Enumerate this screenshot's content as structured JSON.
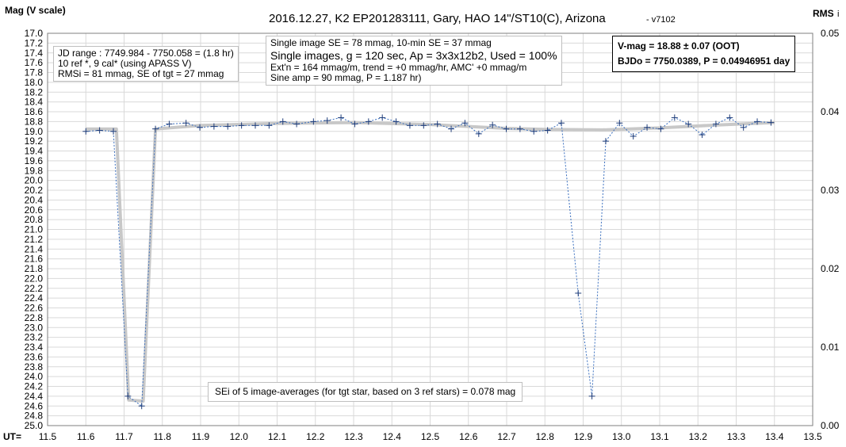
{
  "header": {
    "title": "2016.12.27,  K2 EP201283111,  Gary, HAO  14\"/ST10(C), Arizona",
    "version": "- v7102",
    "y_label": "Mag (V scale)",
    "y2_label": "RMS",
    "y2_label_sub": "i",
    "x_label": "UT="
  },
  "info_left": {
    "line1": "JD range  : 7749.984 - 7750.058  = (1.8 hr)",
    "line2": "10 ref *, 9 cal* (using APASS V)",
    "line3": "RMSi = 81 mmag, SE of tgt = 27 mmag"
  },
  "info_mid": {
    "line1": "Single image SE = 78  mmag, 10-min SE = 37 mmag",
    "line2": "Single images, g = 120 sec,  Ap = 3x3x12b2,  Used = 100%",
    "line3": "Ext'n = 164  mmag/m,  trend = +0 mmag/hr,  AMC' +0 mmag/m",
    "line4": "Sine amp = 90 mmag, P = 1.187 hr)"
  },
  "info_right": {
    "line1": "V-mag  = 18.88 ± 0.07 (OOT)",
    "line2": "BJDo = 7750.0389,  P = 0.04946951  day"
  },
  "info_bottom": {
    "line1": "SEi of 5 image-averages (for tgt star, based on 3 ref stars) = 0.078 mag"
  },
  "colors": {
    "data_points": "#1f3d7a",
    "data_line": "#3a6fbf",
    "model": "#c8c8c8",
    "grid": "#d9d9d9"
  },
  "chart_data": {
    "type": "scatter",
    "title": "2016.12.27,  K2 EP201283111,  Gary, HAO  14\"/ST10(C), Arizona",
    "xlabel": "UT=",
    "ylabel": "Mag (V scale)",
    "y2label": "RMS i",
    "xlim": [
      11.5,
      13.5
    ],
    "ylim": [
      17.0,
      25.0
    ],
    "y_inverted": true,
    "y2lim": [
      0.0,
      0.05
    ],
    "x_ticks": [
      11.5,
      11.6,
      11.7,
      11.8,
      11.9,
      12.0,
      12.1,
      12.2,
      12.3,
      12.4,
      12.5,
      12.6,
      12.7,
      12.8,
      12.9,
      13.0,
      13.1,
      13.2,
      13.3,
      13.4,
      13.5
    ],
    "y_ticks": [
      17.0,
      17.2,
      17.4,
      17.6,
      17.8,
      18.0,
      18.2,
      18.4,
      18.6,
      18.8,
      19.0,
      19.2,
      19.4,
      19.6,
      19.8,
      20.0,
      20.2,
      20.4,
      20.6,
      20.8,
      21.0,
      21.2,
      21.4,
      21.6,
      21.8,
      22.0,
      22.2,
      22.4,
      22.6,
      22.8,
      23.0,
      23.2,
      23.4,
      23.6,
      23.8,
      24.0,
      24.2,
      24.4,
      24.6,
      24.8,
      25.0
    ],
    "y2_ticks": [
      0.0,
      0.01,
      0.02,
      0.03,
      0.04,
      0.05
    ],
    "grid": true,
    "series": [
      {
        "name": "",
        "style": "markers+dashed-line",
        "points": [
          {
            "x": 11.6,
            "y": 19.0
          },
          {
            "x": 11.636,
            "y": 18.98
          },
          {
            "x": 11.672,
            "y": 19.0
          },
          {
            "x": 11.71,
            "y": 24.4
          },
          {
            "x": 11.746,
            "y": 24.6
          },
          {
            "x": 11.782,
            "y": 18.95
          },
          {
            "x": 11.818,
            "y": 18.85
          },
          {
            "x": 11.862,
            "y": 18.83
          },
          {
            "x": 11.898,
            "y": 18.92
          },
          {
            "x": 11.935,
            "y": 18.9
          },
          {
            "x": 11.971,
            "y": 18.9
          },
          {
            "x": 12.007,
            "y": 18.88
          },
          {
            "x": 12.043,
            "y": 18.88
          },
          {
            "x": 12.079,
            "y": 18.88
          },
          {
            "x": 12.115,
            "y": 18.8
          },
          {
            "x": 12.151,
            "y": 18.85
          },
          {
            "x": 12.195,
            "y": 18.8
          },
          {
            "x": 12.231,
            "y": 18.78
          },
          {
            "x": 12.267,
            "y": 18.72
          },
          {
            "x": 12.303,
            "y": 18.85
          },
          {
            "x": 12.339,
            "y": 18.8
          },
          {
            "x": 12.375,
            "y": 18.72
          },
          {
            "x": 12.411,
            "y": 18.8
          },
          {
            "x": 12.447,
            "y": 18.88
          },
          {
            "x": 12.483,
            "y": 18.88
          },
          {
            "x": 12.519,
            "y": 18.85
          },
          {
            "x": 12.555,
            "y": 18.95
          },
          {
            "x": 12.591,
            "y": 18.83
          },
          {
            "x": 12.627,
            "y": 19.05
          },
          {
            "x": 12.663,
            "y": 18.87
          },
          {
            "x": 12.699,
            "y": 18.95
          },
          {
            "x": 12.735,
            "y": 18.95
          },
          {
            "x": 12.771,
            "y": 19.0
          },
          {
            "x": 12.807,
            "y": 18.98
          },
          {
            "x": 12.843,
            "y": 18.83
          },
          {
            "x": 12.887,
            "y": 22.3
          },
          {
            "x": 12.923,
            "y": 24.4
          },
          {
            "x": 12.959,
            "y": 19.2
          },
          {
            "x": 12.995,
            "y": 18.83
          },
          {
            "x": 13.031,
            "y": 19.1
          },
          {
            "x": 13.067,
            "y": 18.92
          },
          {
            "x": 13.103,
            "y": 18.95
          },
          {
            "x": 13.139,
            "y": 18.72
          },
          {
            "x": 13.175,
            "y": 18.85
          },
          {
            "x": 13.211,
            "y": 19.07
          },
          {
            "x": 13.247,
            "y": 18.85
          },
          {
            "x": 13.283,
            "y": 18.72
          },
          {
            "x": 13.319,
            "y": 18.92
          },
          {
            "x": 13.355,
            "y": 18.8
          },
          {
            "x": 13.391,
            "y": 18.82
          }
        ]
      },
      {
        "name": "",
        "style": "thick-gray-line",
        "points": [
          {
            "x": 11.6,
            "y": 18.95
          },
          {
            "x": 11.68,
            "y": 18.95
          },
          {
            "x": 11.712,
            "y": 24.48
          },
          {
            "x": 11.75,
            "y": 24.5
          },
          {
            "x": 11.782,
            "y": 18.95
          },
          {
            "x": 11.9,
            "y": 18.88
          },
          {
            "x": 12.1,
            "y": 18.84
          },
          {
            "x": 12.3,
            "y": 18.82
          },
          {
            "x": 12.5,
            "y": 18.86
          },
          {
            "x": 12.7,
            "y": 18.94
          },
          {
            "x": 12.8,
            "y": 18.96
          },
          {
            "x": 12.95,
            "y": 18.97
          },
          {
            "x": 13.1,
            "y": 18.93
          },
          {
            "x": 13.25,
            "y": 18.87
          },
          {
            "x": 13.4,
            "y": 18.82
          }
        ]
      }
    ]
  }
}
